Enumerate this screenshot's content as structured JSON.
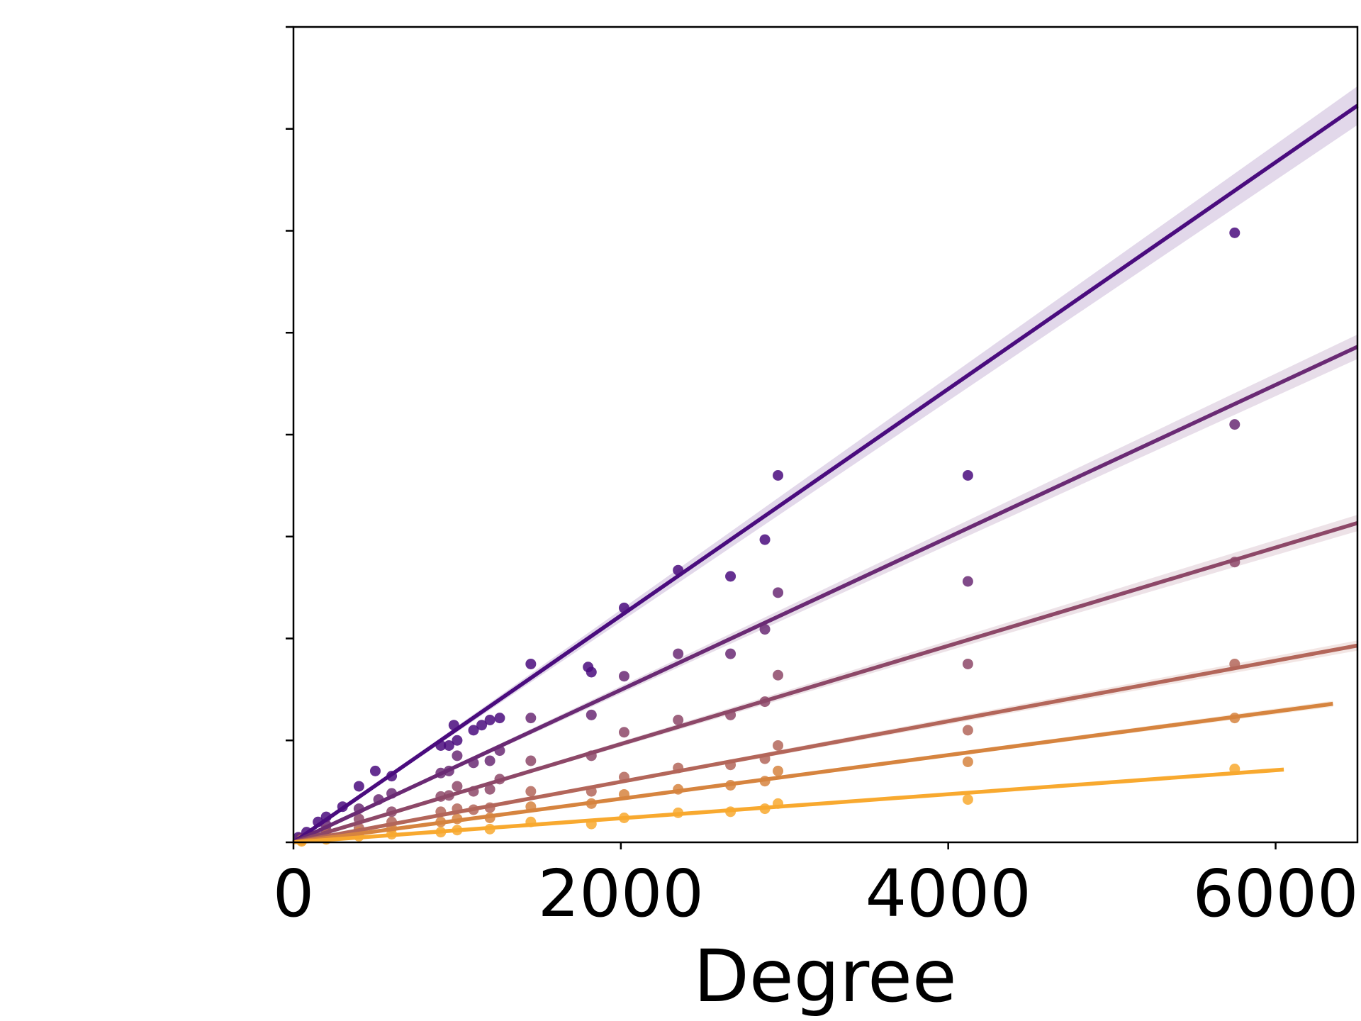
{
  "chart_data": {
    "type": "scatter",
    "title": "",
    "xlabel": "Degree",
    "ylabel": "",
    "xlim": [
      0,
      6500
    ],
    "ylim": [
      0,
      8
    ],
    "x_ticks": [
      0,
      2000,
      4000,
      6000
    ],
    "x_tick_labels": [
      "0",
      "2000",
      "4000",
      "6000"
    ],
    "y_ticks": [
      0,
      1,
      2,
      3,
      4,
      5,
      6,
      7,
      8
    ],
    "y_tick_labels": [
      "",
      "",
      "",
      "",
      "",
      "",
      "",
      "",
      ""
    ],
    "grid": false,
    "legend": "none",
    "has_regression_fits": true,
    "has_confidence_bands": true,
    "series": [
      {
        "color": "#4a0c7e",
        "fit": {
          "slope": 0.001112,
          "x_end": 6500
        },
        "band_halfwidth_at_end": 0.19,
        "points": [
          [
            30,
            0.05
          ],
          [
            80,
            0.1
          ],
          [
            150,
            0.2
          ],
          [
            200,
            0.25
          ],
          [
            300,
            0.35
          ],
          [
            400,
            0.55
          ],
          [
            500,
            0.7
          ],
          [
            600,
            0.65
          ],
          [
            900,
            0.95
          ],
          [
            950,
            0.95
          ],
          [
            980,
            1.15
          ],
          [
            1000,
            1.0
          ],
          [
            1100,
            1.1
          ],
          [
            1150,
            1.15
          ],
          [
            1200,
            1.2
          ],
          [
            1260,
            1.22
          ],
          [
            1450,
            1.75
          ],
          [
            1800,
            1.72
          ],
          [
            1820,
            1.67
          ],
          [
            2020,
            2.3
          ],
          [
            2350,
            2.67
          ],
          [
            2670,
            2.61
          ],
          [
            2880,
            2.97
          ],
          [
            2960,
            3.6
          ],
          [
            4120,
            3.6
          ],
          [
            5750,
            5.98
          ]
        ]
      },
      {
        "color": "#6a2a74",
        "fit": {
          "slope": 0.000748,
          "x_end": 6500
        },
        "band_halfwidth_at_end": 0.12,
        "points": [
          [
            40,
            0.04
          ],
          [
            200,
            0.17
          ],
          [
            400,
            0.33
          ],
          [
            520,
            0.42
          ],
          [
            600,
            0.48
          ],
          [
            900,
            0.68
          ],
          [
            950,
            0.7
          ],
          [
            1000,
            0.85
          ],
          [
            1100,
            0.78
          ],
          [
            1200,
            0.8
          ],
          [
            1260,
            0.9
          ],
          [
            1450,
            1.22
          ],
          [
            1820,
            1.25
          ],
          [
            2020,
            1.63
          ],
          [
            2350,
            1.85
          ],
          [
            2670,
            1.85
          ],
          [
            2880,
            2.09
          ],
          [
            2960,
            2.45
          ],
          [
            4120,
            2.56
          ],
          [
            5750,
            4.1
          ]
        ]
      },
      {
        "color": "#8d4868",
        "fit": {
          "slope": 0.000482,
          "x_end": 6500
        },
        "band_halfwidth_at_end": 0.08,
        "points": [
          [
            50,
            0.03
          ],
          [
            200,
            0.12
          ],
          [
            400,
            0.23
          ],
          [
            600,
            0.3
          ],
          [
            900,
            0.45
          ],
          [
            950,
            0.46
          ],
          [
            1000,
            0.55
          ],
          [
            1100,
            0.5
          ],
          [
            1200,
            0.52
          ],
          [
            1260,
            0.62
          ],
          [
            1450,
            0.8
          ],
          [
            1820,
            0.85
          ],
          [
            2020,
            1.08
          ],
          [
            2350,
            1.2
          ],
          [
            2670,
            1.25
          ],
          [
            2880,
            1.38
          ],
          [
            2960,
            1.64
          ],
          [
            4120,
            1.75
          ],
          [
            5750,
            2.75
          ]
        ]
      },
      {
        "color": "#b3665a",
        "fit": {
          "slope": 0.000297,
          "x_end": 6500
        },
        "band_halfwidth_at_end": 0.05,
        "points": [
          [
            50,
            0.02
          ],
          [
            200,
            0.08
          ],
          [
            400,
            0.14
          ],
          [
            600,
            0.2
          ],
          [
            900,
            0.3
          ],
          [
            1000,
            0.33
          ],
          [
            1100,
            0.32
          ],
          [
            1200,
            0.34
          ],
          [
            1450,
            0.5
          ],
          [
            1820,
            0.5
          ],
          [
            2020,
            0.64
          ],
          [
            2350,
            0.73
          ],
          [
            2670,
            0.76
          ],
          [
            2880,
            0.82
          ],
          [
            2960,
            0.95
          ],
          [
            4120,
            1.1
          ],
          [
            5750,
            1.75
          ]
        ]
      },
      {
        "color": "#d6843f",
        "fit": {
          "slope": 0.000214,
          "x_end": 6350
        },
        "band_halfwidth_at_end": 0.03,
        "points": [
          [
            50,
            0.02
          ],
          [
            200,
            0.06
          ],
          [
            400,
            0.1
          ],
          [
            600,
            0.14
          ],
          [
            900,
            0.2
          ],
          [
            1000,
            0.23
          ],
          [
            1200,
            0.24
          ],
          [
            1450,
            0.35
          ],
          [
            1820,
            0.38
          ],
          [
            2020,
            0.47
          ],
          [
            2350,
            0.52
          ],
          [
            2670,
            0.56
          ],
          [
            2880,
            0.6
          ],
          [
            2960,
            0.7
          ],
          [
            4120,
            0.79
          ],
          [
            5750,
            1.22
          ]
        ]
      },
      {
        "color": "#f8a92f",
        "fit": {
          "slope": 0.000118,
          "x_end": 6050
        },
        "band_halfwidth_at_end": 0.02,
        "points": [
          [
            50,
            0.01
          ],
          [
            200,
            0.03
          ],
          [
            400,
            0.06
          ],
          [
            600,
            0.08
          ],
          [
            900,
            0.1
          ],
          [
            1000,
            0.12
          ],
          [
            1200,
            0.13
          ],
          [
            1450,
            0.2
          ],
          [
            1820,
            0.18
          ],
          [
            2020,
            0.24
          ],
          [
            2350,
            0.29
          ],
          [
            2670,
            0.3
          ],
          [
            2880,
            0.33
          ],
          [
            2960,
            0.38
          ],
          [
            4120,
            0.42
          ],
          [
            5750,
            0.72
          ]
        ]
      }
    ]
  }
}
